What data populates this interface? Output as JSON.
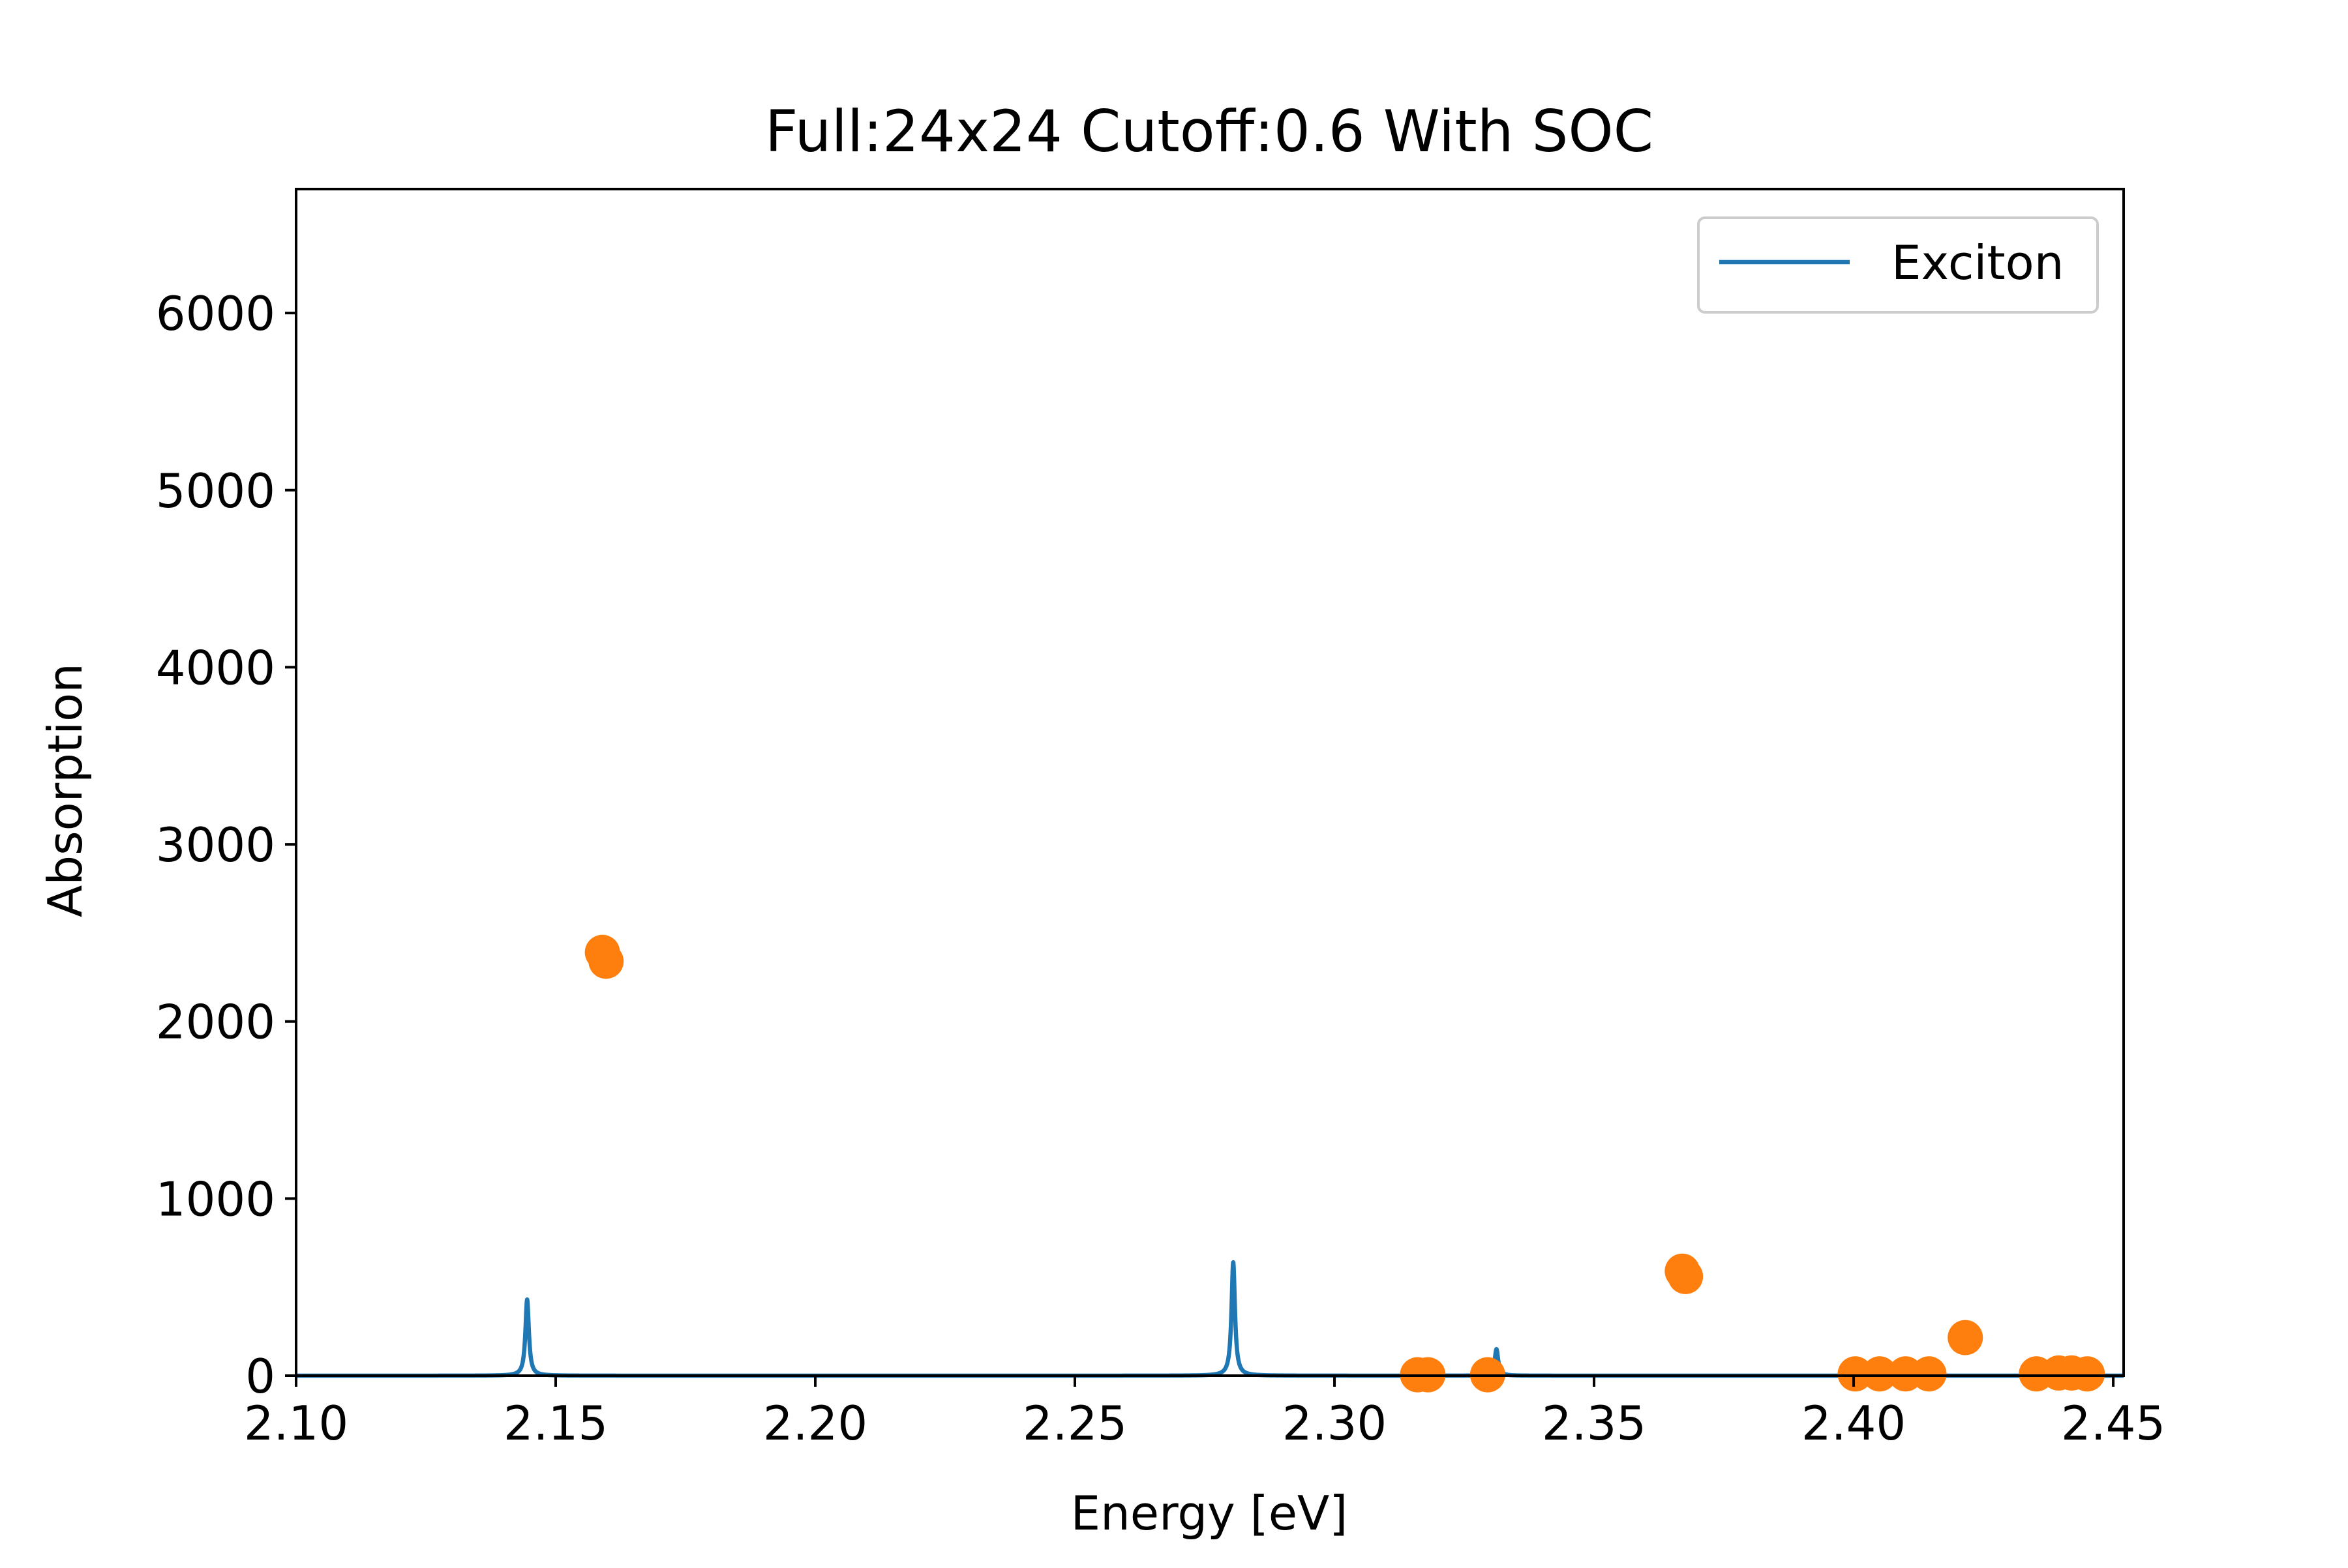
{
  "chart_data": {
    "type": "line",
    "title": "Full:24x24 Cutoff:0.6 With SOC",
    "xlabel": "Energy [eV]",
    "ylabel": "Absorption",
    "xlim": [
      2.1,
      2.452
    ],
    "ylim": [
      0,
      6700
    ],
    "x_ticks": [
      2.1,
      2.15,
      2.2,
      2.25,
      2.3,
      2.35,
      2.4,
      2.45
    ],
    "x_tick_labels": [
      "2.10",
      "2.15",
      "2.20",
      "2.25",
      "2.30",
      "2.35",
      "2.40",
      "2.45"
    ],
    "y_ticks": [
      0,
      1000,
      2000,
      3000,
      4000,
      5000,
      6000
    ],
    "y_tick_labels": [
      "0",
      "1000",
      "2000",
      "3000",
      "4000",
      "5000",
      "6000"
    ],
    "legend": {
      "location": "upper right",
      "entries": [
        "Exciton"
      ]
    },
    "grid": false,
    "series": [
      {
        "name": "Exciton",
        "kind": "line",
        "color": "#1f77b4",
        "peaks": [
          {
            "x": 2.1445,
            "y": 430,
            "width": 0.0004
          },
          {
            "x": 2.2805,
            "y": 640,
            "width": 0.0004
          },
          {
            "x": 2.3312,
            "y": 150,
            "width": 0.0004
          }
        ]
      },
      {
        "kind": "scatter",
        "color": "#ff7f0e",
        "points": [
          {
            "x": 2.159,
            "y": 2390
          },
          {
            "x": 2.1597,
            "y": 2340
          },
          {
            "x": 2.316,
            "y": 5
          },
          {
            "x": 2.318,
            "y": 5
          },
          {
            "x": 2.3295,
            "y": 5
          },
          {
            "x": 2.367,
            "y": 590
          },
          {
            "x": 2.3676,
            "y": 560
          },
          {
            "x": 2.4003,
            "y": 10
          },
          {
            "x": 2.405,
            "y": 10
          },
          {
            "x": 2.41,
            "y": 10
          },
          {
            "x": 2.4145,
            "y": 10
          },
          {
            "x": 2.4215,
            "y": 215
          },
          {
            "x": 2.4352,
            "y": 10
          },
          {
            "x": 2.4395,
            "y": 15
          },
          {
            "x": 2.442,
            "y": 15
          },
          {
            "x": 2.445,
            "y": 10
          }
        ]
      }
    ]
  }
}
